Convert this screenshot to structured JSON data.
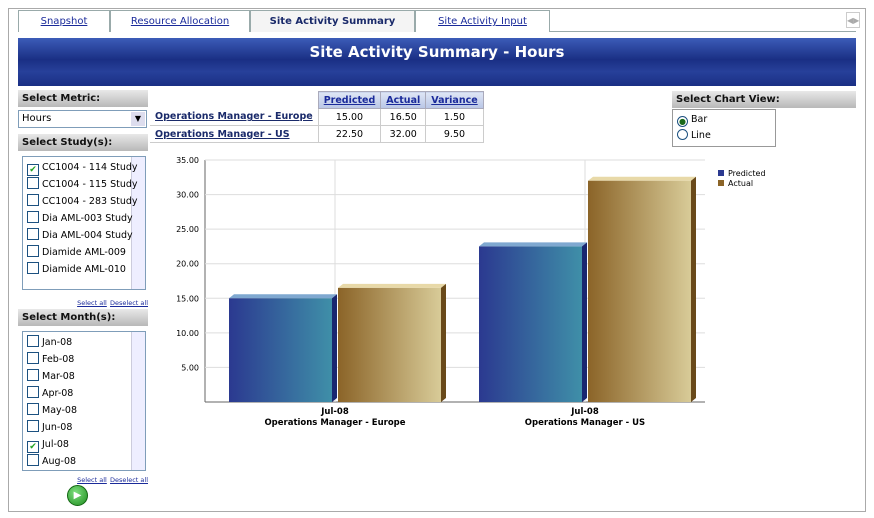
{
  "tabs": [
    "Snapshot",
    "Resource Allocation",
    "Site Activity Summary",
    "Site Activity Input"
  ],
  "header": {
    "title": "Site Activity Summary - Hours"
  },
  "metric": {
    "label": "Select Metric:",
    "selected": "Hours"
  },
  "studies": {
    "label": "Select Study(s):",
    "items": [
      {
        "text": "CC1004 - 114 Study",
        "checked": true
      },
      {
        "text": "CC1004 - 115 Study",
        "checked": false
      },
      {
        "text": "CC1004 - 283 Study",
        "checked": false
      },
      {
        "text": "Dia AML-003 Study",
        "checked": false
      },
      {
        "text": "Dia AML-004 Study",
        "checked": false
      },
      {
        "text": "Diamide AML-009",
        "checked": false
      },
      {
        "text": "Diamide AML-010",
        "checked": false
      }
    ],
    "select_all": "Select all",
    "deselect_all": "Deselect all"
  },
  "months": {
    "label": "Select Month(s):",
    "items": [
      {
        "text": "Jan-08",
        "checked": false
      },
      {
        "text": "Feb-08",
        "checked": false
      },
      {
        "text": "Mar-08",
        "checked": false
      },
      {
        "text": "Apr-08",
        "checked": false
      },
      {
        "text": "May-08",
        "checked": false
      },
      {
        "text": "Jun-08",
        "checked": false
      },
      {
        "text": "Jul-08",
        "checked": true
      },
      {
        "text": "Aug-08",
        "checked": false
      }
    ],
    "select_all": "Select all",
    "deselect_all": "Deselect all"
  },
  "table": {
    "columns": [
      "Predicted",
      "Actual",
      "Variance"
    ],
    "rows": [
      [
        "Operations Manager - Europe",
        "15.00",
        "16.50",
        "1.50"
      ],
      [
        "Operations Manager - US",
        "22.50",
        "32.00",
        "9.50"
      ]
    ]
  },
  "chart_view": {
    "label": "Select Chart View:",
    "options": [
      "Bar",
      "Line"
    ],
    "selected": 0
  },
  "chart_data": {
    "type": "bar",
    "period": "Jul-08",
    "categories": [
      "Operations Manager - Europe",
      "Operations Manager - US"
    ],
    "series": [
      {
        "name": "Predicted",
        "color": "#2b3990",
        "values": [
          15,
          22.5
        ]
      },
      {
        "name": "Actual",
        "color": "#8b6428",
        "values": [
          16.5,
          32
        ]
      }
    ],
    "ylim": [
      0,
      35
    ],
    "yticks": [
      {
        "value": 5,
        "label": "5.00"
      },
      {
        "value": 10,
        "label": "10.00"
      },
      {
        "value": 15,
        "label": "15.00"
      },
      {
        "value": 20,
        "label": "20.00"
      },
      {
        "value": 25,
        "label": "25.00"
      },
      {
        "value": 30,
        "label": "30.00"
      },
      {
        "value": 35,
        "label": "35.00"
      }
    ],
    "grid": true
  }
}
